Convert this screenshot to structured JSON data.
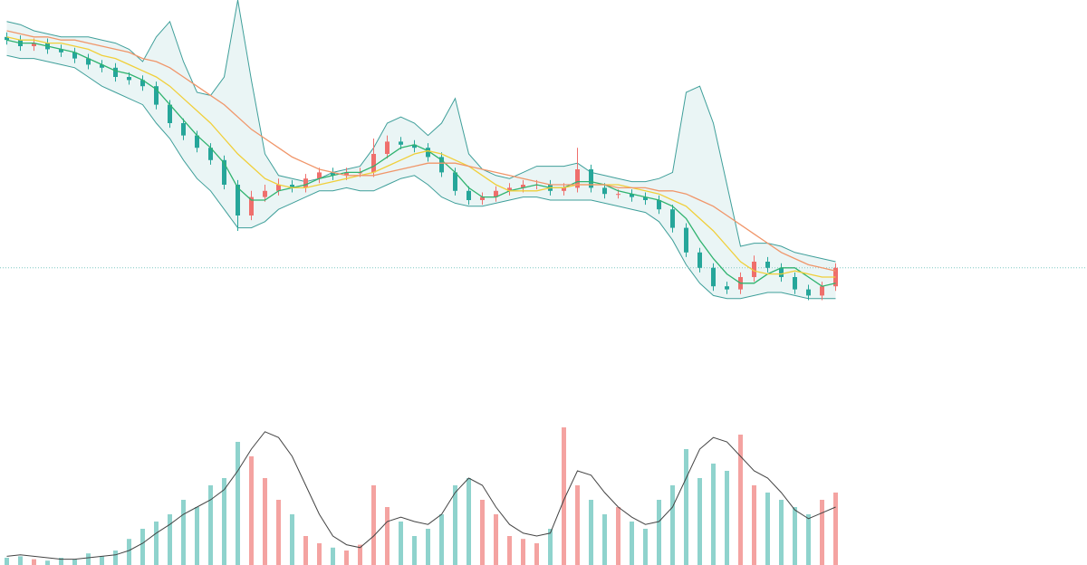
{
  "chart_data": [
    {
      "type": "candlestick",
      "ylim": [
        0,
        100
      ],
      "up_color": "#ef6f6c",
      "down_color": "#26a69a",
      "last_price": 13,
      "last_price_color": "#7fc8c4",
      "open": [
        88,
        87,
        85,
        86,
        84,
        83,
        81,
        79,
        78,
        75,
        74,
        72,
        66,
        60,
        56,
        52,
        48,
        40,
        30,
        36,
        38,
        40,
        39,
        42,
        44,
        43,
        44,
        44,
        50,
        54,
        53,
        52,
        49,
        44,
        38,
        35,
        36,
        38,
        39,
        40,
        40,
        38,
        39,
        45,
        39,
        37,
        37,
        36,
        35,
        32,
        26,
        18,
        13,
        7,
        6,
        10,
        15,
        13,
        10,
        6,
        4,
        7
      ],
      "high": [
        89.5,
        88.5,
        87.5,
        87.5,
        85.5,
        84.5,
        82.5,
        80.5,
        79.5,
        76.5,
        75.5,
        73.5,
        67.5,
        61.5,
        57.5,
        53.5,
        49.5,
        41.5,
        38,
        40,
        42,
        41.5,
        43.5,
        45.5,
        45.5,
        45.5,
        45.5,
        55,
        56,
        55.5,
        54.5,
        53.5,
        50.5,
        45.5,
        39.5,
        37.5,
        39.5,
        40.5,
        41.5,
        41.5,
        41.5,
        40.5,
        52,
        46.5,
        40.5,
        38.5,
        38.5,
        37.5,
        36.5,
        33.5,
        27.5,
        19.5,
        14.5,
        8.5,
        11.5,
        17,
        16.5,
        14.5,
        11.5,
        7.5,
        8.5,
        14.5
      ],
      "low": [
        85.5,
        83.5,
        83.5,
        82.5,
        81.5,
        79.5,
        77.5,
        76.5,
        73.5,
        72.5,
        70.5,
        64.5,
        58.5,
        54.5,
        50.5,
        46.5,
        38.5,
        25,
        28.5,
        34.5,
        36.5,
        37.5,
        37.5,
        40.5,
        41.5,
        41.5,
        42.5,
        42.5,
        48.5,
        51.5,
        50.5,
        47.5,
        42.5,
        36.5,
        33.5,
        33.5,
        34.5,
        36.5,
        37.5,
        38.5,
        36.5,
        36.5,
        37.5,
        37.5,
        35.5,
        35.5,
        34.5,
        33.5,
        30.5,
        24.5,
        16.5,
        11.5,
        5.5,
        4.5,
        4.5,
        8.5,
        11.5,
        8.5,
        4.5,
        2.5,
        2.5,
        5.5
      ],
      "close": [
        87,
        85,
        86,
        84,
        83,
        81,
        79,
        78,
        75,
        74,
        72,
        66,
        60,
        56,
        52,
        48,
        40,
        30,
        36,
        38,
        40,
        39,
        42,
        44,
        43,
        44,
        44,
        50,
        54,
        53,
        52,
        49,
        44,
        38,
        35,
        36,
        38,
        39,
        40,
        40,
        38,
        39,
        45,
        39,
        37,
        37,
        36,
        35,
        32,
        26,
        18,
        13,
        7,
        6,
        10,
        15,
        13,
        10,
        6,
        4,
        7,
        13
      ],
      "bands": {
        "color": "#3f9f9a",
        "fill": "#eaf5f5",
        "upper": [
          93,
          92,
          90,
          89,
          88,
          88,
          88,
          87,
          86,
          84,
          80,
          88,
          93,
          80,
          70,
          69,
          75,
          100,
          74,
          50,
          43,
          42,
          41,
          42,
          44,
          45,
          46,
          52,
          60,
          62,
          60,
          56,
          60,
          68,
          50,
          45,
          43,
          42,
          44,
          46,
          46,
          46,
          47,
          44,
          43,
          42,
          41,
          41,
          42,
          44,
          70,
          72,
          60,
          40,
          20,
          21,
          21,
          20,
          18,
          17,
          16,
          15
        ],
        "lower": [
          82,
          81,
          81,
          80,
          79,
          78,
          75,
          72,
          70,
          68,
          66,
          60,
          55,
          48,
          42,
          38,
          32,
          26,
          26,
          28,
          32,
          34,
          36,
          38,
          38,
          39,
          38,
          38,
          40,
          42,
          43,
          40,
          36,
          34,
          33,
          33,
          34,
          35,
          36,
          36,
          35,
          35,
          35,
          35,
          34,
          33,
          32,
          31,
          28,
          22,
          14,
          8,
          4,
          3,
          3,
          4,
          5,
          5,
          4,
          3,
          3,
          3
        ]
      },
      "series": [
        {
          "color": "#2fb36f",
          "values": [
            87,
            86,
            86,
            85,
            84,
            83,
            81,
            79,
            77,
            76,
            74,
            71,
            66,
            61,
            56,
            52,
            47,
            39,
            35,
            35,
            38,
            39,
            40,
            42,
            43,
            44,
            44,
            46,
            49,
            52,
            53,
            51,
            48,
            44,
            39,
            36,
            36,
            38,
            39,
            40,
            39,
            39,
            41,
            41,
            40,
            38,
            37,
            36,
            35,
            33,
            29,
            22,
            16,
            11,
            8,
            8,
            11,
            13,
            13,
            10,
            7,
            8
          ]
        },
        {
          "color": "#f0cf3a",
          "values": [
            88,
            87,
            87,
            86,
            86,
            85,
            84,
            82,
            81,
            79,
            77,
            75,
            72,
            68,
            64,
            60,
            55,
            50,
            46,
            42,
            40,
            39,
            39,
            40,
            41,
            42,
            43,
            44,
            46,
            48,
            50,
            51,
            50,
            48,
            46,
            43,
            40,
            38,
            38,
            38,
            39,
            39,
            40,
            40,
            40,
            40,
            39,
            38,
            37,
            35,
            33,
            29,
            25,
            20,
            15,
            12,
            11,
            11,
            12,
            11,
            10,
            10
          ]
        },
        {
          "color": "#f0966a",
          "values": [
            90,
            89,
            88,
            88,
            87,
            87,
            86,
            85,
            84,
            83,
            81,
            80,
            78,
            75,
            72,
            69,
            66,
            62,
            58,
            55,
            52,
            49,
            47,
            45,
            44,
            43,
            43,
            43,
            44,
            45,
            46,
            47,
            47,
            47,
            46,
            45,
            44,
            43,
            42,
            41,
            40,
            40,
            40,
            40,
            40,
            39,
            39,
            39,
            38,
            38,
            37,
            35,
            33,
            30,
            27,
            24,
            21,
            18,
            16,
            14,
            13,
            12
          ]
        }
      ]
    },
    {
      "type": "bar",
      "ylim": [
        0,
        100
      ],
      "up_color": "#f4a3a1",
      "down_color": "#8fd3cd",
      "values": [
        5,
        6,
        4,
        3,
        5,
        4,
        8,
        6,
        10,
        18,
        25,
        30,
        35,
        45,
        40,
        55,
        60,
        85,
        75,
        60,
        45,
        35,
        20,
        15,
        12,
        10,
        14,
        55,
        40,
        30,
        20,
        25,
        35,
        55,
        60,
        45,
        35,
        20,
        18,
        15,
        25,
        95,
        55,
        45,
        35,
        40,
        30,
        25,
        45,
        55,
        80,
        60,
        70,
        65,
        90,
        55,
        50,
        45,
        40,
        35,
        45,
        50
      ],
      "series": [
        {
          "color": "#444444",
          "values": [
            6,
            7,
            6,
            5,
            4,
            4,
            5,
            6,
            7,
            10,
            15,
            22,
            28,
            35,
            40,
            45,
            52,
            65,
            80,
            92,
            88,
            75,
            55,
            35,
            20,
            14,
            12,
            20,
            30,
            33,
            30,
            28,
            35,
            50,
            60,
            55,
            40,
            28,
            22,
            20,
            22,
            45,
            65,
            62,
            50,
            40,
            33,
            28,
            30,
            40,
            60,
            80,
            88,
            85,
            75,
            65,
            60,
            50,
            38,
            32,
            36,
            40
          ]
        }
      ]
    }
  ]
}
